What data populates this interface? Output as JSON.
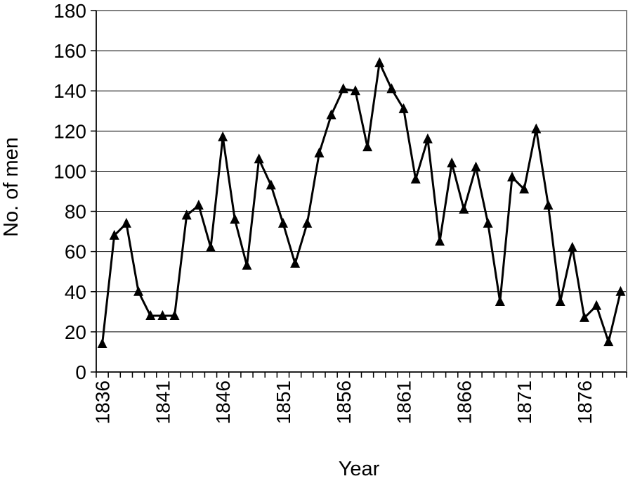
{
  "chart_data": {
    "type": "line",
    "title": "",
    "xlabel": "Year",
    "ylabel": "No. of men",
    "ylim": [
      0,
      180
    ],
    "yticks": [
      "0",
      "20",
      "40",
      "60",
      "80",
      "100",
      "120",
      "140",
      "160",
      "180"
    ],
    "xticks": [
      "1836",
      "1841",
      "1846",
      "1851",
      "1856",
      "1861",
      "1866",
      "1871",
      "1876"
    ],
    "xlim": [
      1835.5,
      1879.5
    ],
    "grid": true,
    "marker": "triangle",
    "line_color": "#000000",
    "grid_color": "#000000",
    "series": [
      {
        "x": [
          1836,
          1837,
          1838,
          1839,
          1840,
          1841,
          1842,
          1843,
          1844,
          1845,
          1846,
          1847,
          1848,
          1849,
          1850,
          1851,
          1852,
          1853,
          1854,
          1855,
          1856,
          1857,
          1858,
          1859,
          1860,
          1861,
          1862,
          1863,
          1864,
          1865,
          1866,
          1867,
          1868,
          1869,
          1870,
          1871,
          1872,
          1873,
          1874,
          1875,
          1876,
          1877,
          1878,
          1879
        ],
        "values": [
          14,
          68,
          74,
          40,
          28,
          28,
          28,
          78,
          83,
          62,
          117,
          76,
          53,
          106,
          93,
          74,
          54,
          74,
          109,
          128,
          141,
          140,
          112,
          154,
          141,
          131,
          96,
          116,
          65,
          104,
          81,
          102,
          74,
          35,
          97,
          91,
          121,
          83,
          35,
          62,
          27,
          33,
          15,
          40
        ]
      }
    ]
  }
}
